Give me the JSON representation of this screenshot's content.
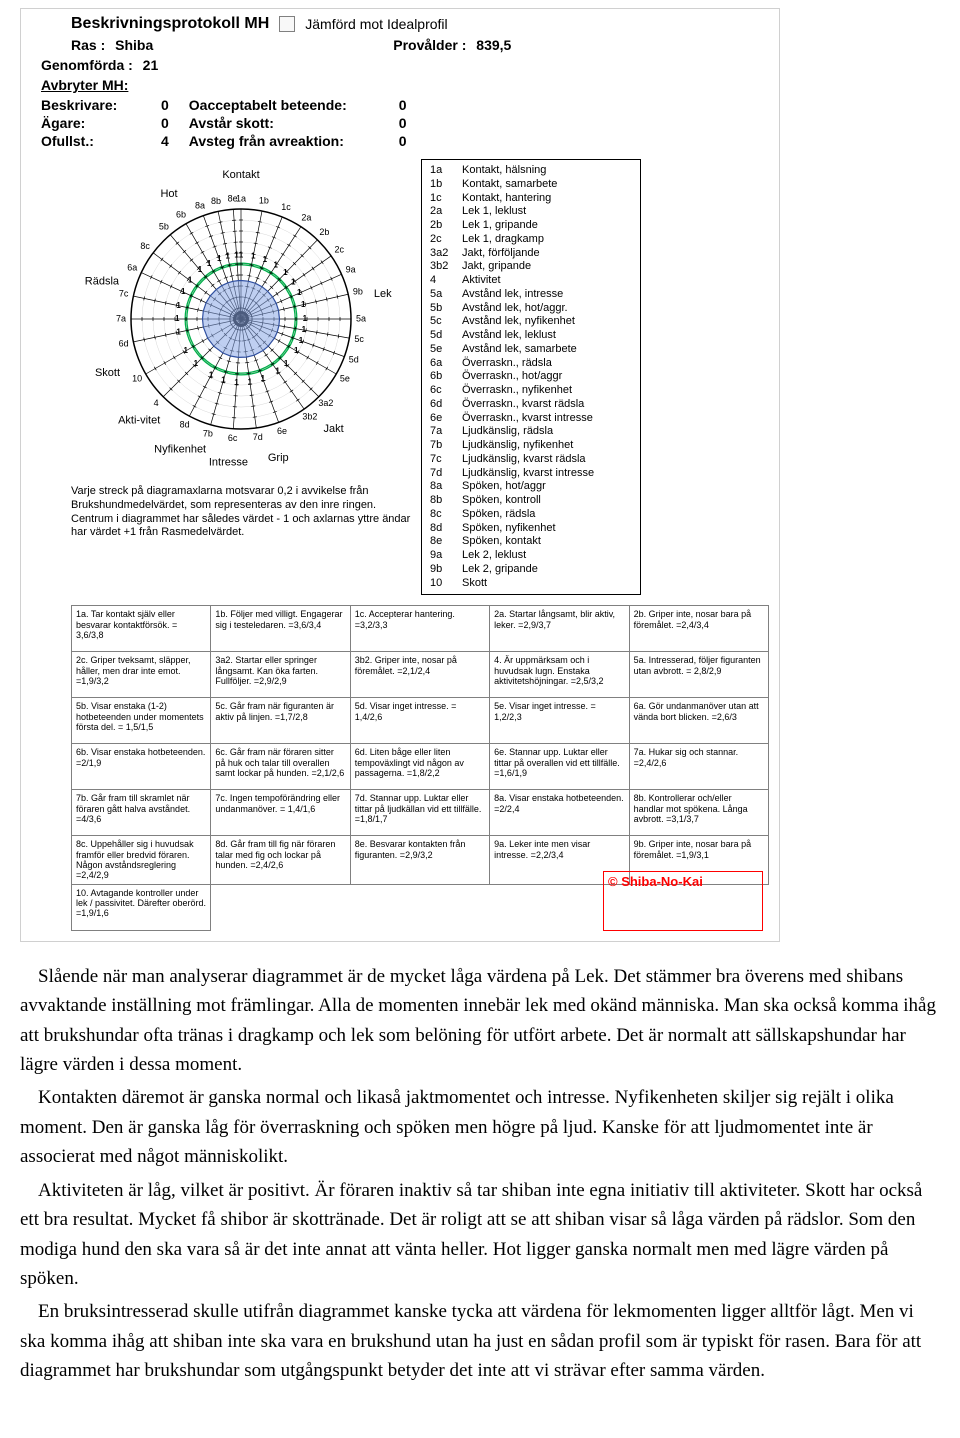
{
  "title": "Beskrivningsprotokoll MH",
  "ideal_label": "Jämförd mot Idealprofil",
  "header": {
    "ras_label": "Ras :",
    "ras_value": "Shiba",
    "provalder_label": "Provålder :",
    "provalder_value": "839,5",
    "genomforda_label": "Genomförda :",
    "genomforda_value": "21",
    "avbryter_label": "Avbryter MH:",
    "beskrivare": {
      "label": "Beskrivare:",
      "value": "0"
    },
    "agare": {
      "label": "Ägare:",
      "value": "0"
    },
    "ofullst": {
      "label": "Ofullst.:",
      "value": "4"
    },
    "oaccept": {
      "label": "Oacceptabelt beteende:",
      "value": "0"
    },
    "avstar": {
      "label": "Avstår skott:",
      "value": "0"
    },
    "avsteg": {
      "label": "Avsteg från avreaktion:",
      "value": "0"
    }
  },
  "radar": {
    "categories": [
      "Kontakt",
      "Lek",
      "Jakt",
      "Grip",
      "Intresse",
      "Nyfikenhet",
      "Akti-vitet",
      "Skott",
      "Rädsla",
      "Hot"
    ],
    "spokes": [
      {
        "code": "1a",
        "angle": 0
      },
      {
        "code": "1b",
        "angle": 11
      },
      {
        "code": "1c",
        "angle": 22
      },
      {
        "code": "2a",
        "angle": 33
      },
      {
        "code": "2b",
        "angle": 44
      },
      {
        "code": "2c",
        "angle": 55
      },
      {
        "code": "9a",
        "angle": 66
      },
      {
        "code": "9b",
        "angle": 77
      },
      {
        "code": "5a",
        "angle": 90
      },
      {
        "code": "5c",
        "angle": 100
      },
      {
        "code": "5d",
        "angle": 110
      },
      {
        "code": "5e",
        "angle": 120
      },
      {
        "code": "3a2",
        "angle": 135
      },
      {
        "code": "3b2",
        "angle": 145
      },
      {
        "code": "6e",
        "angle": 160
      },
      {
        "code": "7d",
        "angle": 172
      },
      {
        "code": "6c",
        "angle": 184
      },
      {
        "code": "7b",
        "angle": 196
      },
      {
        "code": "8d",
        "angle": 208
      },
      {
        "code": "4",
        "angle": 225
      },
      {
        "code": "10",
        "angle": 240
      },
      {
        "code": "6d",
        "angle": 258
      },
      {
        "code": "7a",
        "angle": 270
      },
      {
        "code": "7c",
        "angle": 282
      },
      {
        "code": "6a",
        "angle": 295
      },
      {
        "code": "8c",
        "angle": 307
      },
      {
        "code": "5b",
        "angle": 320
      },
      {
        "code": "6b",
        "angle": 330
      },
      {
        "code": "8a",
        "angle": 340
      },
      {
        "code": "8b",
        "angle": 348
      },
      {
        "code": "8e",
        "angle": 356
      }
    ],
    "value": 0.72,
    "colors": {
      "ring": "#000000",
      "ideal_ring": "#00b04a",
      "profile_fill": "#8aa8e6",
      "profile_stroke": "#3050a0",
      "tick": "#000000",
      "bg": "#ffffff"
    },
    "category_fontsize": 11,
    "code_fontsize": 9,
    "note": "Varje streck på diagramaxlarna motsvarar 0,2 i avvikelse från Brukshundmedelvärdet, som representeras av den inre ringen. Centrum i diagrammet har således värdet - 1 och axlarnas yttre ändar har värdet +1 från Rasmedelvärdet."
  },
  "legend": [
    {
      "c": "1a",
      "t": "Kontakt, hälsning"
    },
    {
      "c": "1b",
      "t": "Kontakt, samarbete"
    },
    {
      "c": "1c",
      "t": "Kontakt, hantering"
    },
    {
      "c": "2a",
      "t": "Lek 1, leklust"
    },
    {
      "c": "2b",
      "t": "Lek 1, gripande"
    },
    {
      "c": "2c",
      "t": "Lek 1, dragkamp"
    },
    {
      "c": "3a2",
      "t": "Jakt, förföljande"
    },
    {
      "c": "3b2",
      "t": "Jakt, gripande"
    },
    {
      "c": "4",
      "t": "Aktivitet"
    },
    {
      "c": "5a",
      "t": "Avstånd lek, intresse"
    },
    {
      "c": "5b",
      "t": "Avstånd lek, hot/aggr."
    },
    {
      "c": "5c",
      "t": "Avstånd lek, nyfikenhet"
    },
    {
      "c": "5d",
      "t": "Avstånd lek, leklust"
    },
    {
      "c": "5e",
      "t": "Avstånd lek, samarbete"
    },
    {
      "c": "6a",
      "t": "Överraskn., rädsla"
    },
    {
      "c": "6b",
      "t": "Överraskn., hot/aggr"
    },
    {
      "c": "6c",
      "t": "Överraskn., nyfikenhet"
    },
    {
      "c": "6d",
      "t": "Överraskn., kvarst rädsla"
    },
    {
      "c": "6e",
      "t": "Överraskn., kvarst intresse"
    },
    {
      "c": "7a",
      "t": "Ljudkänslig, rädsla"
    },
    {
      "c": "7b",
      "t": "Ljudkänslig, nyfikenhet"
    },
    {
      "c": "7c",
      "t": "Ljudkänslig, kvarst rädsla"
    },
    {
      "c": "7d",
      "t": "Ljudkänslig, kvarst intresse"
    },
    {
      "c": "8a",
      "t": "Spöken, hot/aggr"
    },
    {
      "c": "8b",
      "t": "Spöken, kontroll"
    },
    {
      "c": "8c",
      "t": "Spöken, rädsla"
    },
    {
      "c": "8d",
      "t": "Spöken, nyfikenhet"
    },
    {
      "c": "8e",
      "t": "Spöken, kontakt"
    },
    {
      "c": "9a",
      "t": "Lek 2, leklust"
    },
    {
      "c": "9b",
      "t": "Lek 2, gripande"
    },
    {
      "c": "10",
      "t": "Skott"
    }
  ],
  "cells": [
    [
      "1a. Tar kontakt själv eller besvarar kontaktförsök. = 3,6/3,8",
      "1b. Följer med villigt. Engagerar sig i testeledaren. =3,6/3,4",
      "1c. Accepterar hantering. =3,2/3,3",
      "2a. Startar långsamt, blir aktiv, leker. =2,9/3,7",
      "2b. Griper inte, nosar bara på föremålet. =2,4/3,4"
    ],
    [
      "2c. Griper tveksamt, släpper, håller, men drar inte emot. =1,9/3,2",
      "3a2. Startar eller springer långsamt. Kan öka farten. Fullföljer. =2,9/2,9",
      "3b2. Griper inte, nosar på föremålet. =2,1/2,4",
      "4. Är uppmärksam och i huvudsak lugn. Enstaka aktivitetshöjningar. =2,5/3,2",
      "5a. Intresserad, följer figuranten utan avbrott. = 2,8/2,9"
    ],
    [
      "5b. Visar enstaka (1-2) hotbeteenden under momentets första del. = 1,5/1,5",
      "5c. Går fram när figuranten är aktiv på linjen. =1,7/2,8",
      "5d. Visar inget intresse. = 1,4/2,6",
      "5e. Visar inget intresse. = 1,2/2,3",
      "6a. Gör undanmanöver utan att vända bort blicken. =2,6/3"
    ],
    [
      "6b. Visar enstaka hotbeteenden. =2/1,9",
      "6c. Går fram när föraren sitter på huk och talar till overallen samt lockar på hunden. =2,1/2,6",
      "6d. Liten båge eller liten tempoväxlingt vid någon av passagerna. =1,8/2,2",
      "6e. Stannar upp. Luktar eller tittar på overallen vid ett tillfälle. =1,6/1,9",
      "7a. Hukar sig och stannar. =2,4/2,6"
    ],
    [
      "7b. Går fram till skramlet när föraren gått halva avståndet. =4/3,6",
      "7c. Ingen tempoförändring eller undanmanöver. = 1,4/1,6",
      "7d. Stannar upp. Luktar eller tittar på ljudkällan vid ett tillfälle. =1,8/1,7",
      "8a. Visar enstaka hotbeteenden. =2/2,4",
      "8b. Kontrollerar och/eller handlar mot spökena. Långa avbrott. =3,1/3,7"
    ],
    [
      "8c. Uppehåller sig i huvudsak framför eller bredvid föraren. Någon avståndsreglering =2,4/2,9",
      "8d. Går fram till fig när föraren talar med fig och lockar på hunden. =2,4/2,6",
      "8e. Besvarar kontakten från figuranten. =2,9/3,2",
      "9a. Leker inte men visar intresse. =2,2/3,4",
      "9b. Griper inte, nosar bara på föremålet. =1,9/3,1"
    ],
    [
      "10. Avtagande kontroller under lek / passivitet. Därefter oberörd. =1,9/1,6",
      "",
      "",
      "",
      ""
    ]
  ],
  "footer_brand": "© Shiba-No-Kai",
  "body_paragraphs": [
    "Slående när man analyserar diagrammet är de mycket låga värdena på Lek. Det stämmer bra överens med shibans avvaktande inställning mot främlingar. Alla de momenten innebär lek med okänd människa. Man ska också komma ihåg att brukshundar ofta tränas i dragkamp och lek som belöning för utfört arbete. Det är normalt att sällskapshundar har lägre värden i dessa moment.",
    "Kontakten däremot är ganska normal och likaså jaktmomentet och intresse. Nyfikenheten skiljer sig rejält i olika moment. Den är ganska låg för överraskning och spöken men högre på ljud. Kanske för att ljudmomentet inte är associerat med något människolikt.",
    "Aktiviteten är låg, vilket är positivt. Är föraren inaktiv så tar shiban inte egna initiativ till aktiviteter. Skott har också ett bra resultat. Mycket få shibor är skottränade. Det är roligt att se att shiban visar så låga värden på rädslor. Som den modiga hund den ska vara så är det inte annat att vänta heller. Hot ligger ganska normalt men med lägre värden på spöken.",
    "En bruksintresserad skulle utifrån diagrammet kanske tycka att värdena för lekmomenten ligger alltför lågt. Men vi ska komma ihåg att shiban inte ska vara en brukshund utan ha just en sådan profil som är typiskt för rasen. Bara för att diagrammet har brukshundar som utgångspunkt betyder det inte att vi strävar efter samma värden."
  ]
}
